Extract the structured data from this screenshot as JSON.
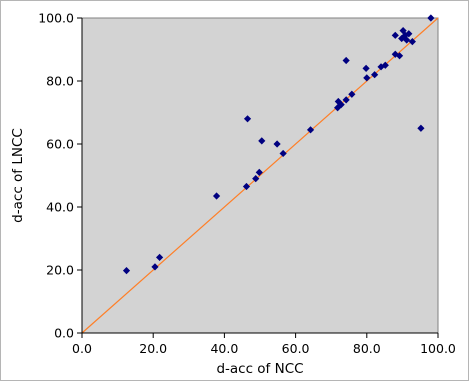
{
  "chart_data": {
    "type": "scatter",
    "title": "",
    "xlabel": "d-acc of NCC",
    "ylabel": "d-acc of LNCC",
    "xlim": [
      0,
      100
    ],
    "ylim": [
      0,
      100
    ],
    "x_ticks": [
      "0.0",
      "20.0",
      "40.0",
      "60.0",
      "80.0",
      "100.0"
    ],
    "y_ticks": [
      "0.0",
      "20.0",
      "40.0",
      "60.0",
      "80.0",
      "100.0"
    ],
    "grid": false,
    "legend": "none",
    "background_color": "#d3d3d3",
    "marker": "diamond",
    "marker_color": "#000080",
    "reference_line": {
      "kind": "y = x",
      "color": "#ff7f27"
    },
    "points": [
      {
        "x": 12.5,
        "y": 19.8
      },
      {
        "x": 20.5,
        "y": 21.0
      },
      {
        "x": 21.8,
        "y": 24.0
      },
      {
        "x": 37.8,
        "y": 43.5
      },
      {
        "x": 46.2,
        "y": 46.5
      },
      {
        "x": 46.5,
        "y": 68.0
      },
      {
        "x": 48.8,
        "y": 49.0
      },
      {
        "x": 49.8,
        "y": 51.0
      },
      {
        "x": 50.5,
        "y": 61.0
      },
      {
        "x": 54.8,
        "y": 60.0
      },
      {
        "x": 56.5,
        "y": 57.0
      },
      {
        "x": 64.2,
        "y": 64.5
      },
      {
        "x": 71.8,
        "y": 71.5
      },
      {
        "x": 72.0,
        "y": 73.5
      },
      {
        "x": 72.8,
        "y": 72.5
      },
      {
        "x": 74.2,
        "y": 74.0
      },
      {
        "x": 74.2,
        "y": 86.5
      },
      {
        "x": 75.8,
        "y": 75.8
      },
      {
        "x": 79.8,
        "y": 84.0
      },
      {
        "x": 80.0,
        "y": 81.0
      },
      {
        "x": 82.2,
        "y": 82.0
      },
      {
        "x": 84.0,
        "y": 84.5
      },
      {
        "x": 85.2,
        "y": 85.0
      },
      {
        "x": 88.0,
        "y": 88.5
      },
      {
        "x": 88.0,
        "y": 94.5
      },
      {
        "x": 89.2,
        "y": 88.0
      },
      {
        "x": 89.8,
        "y": 93.5
      },
      {
        "x": 90.2,
        "y": 96.0
      },
      {
        "x": 90.8,
        "y": 94.5
      },
      {
        "x": 91.2,
        "y": 93.0
      },
      {
        "x": 91.8,
        "y": 95.0
      },
      {
        "x": 92.8,
        "y": 92.5
      },
      {
        "x": 95.2,
        "y": 65.0
      },
      {
        "x": 98.0,
        "y": 100.0
      }
    ]
  }
}
